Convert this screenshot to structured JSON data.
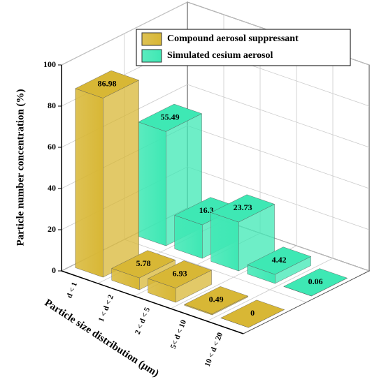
{
  "chart_data": {
    "type": "bar3d",
    "categories": [
      "d < 1",
      "1 < d < 2",
      "2 < d < 5",
      "5< d < 10",
      "10 < d < 20"
    ],
    "series": [
      {
        "name": "Compound aerosol suppressant",
        "color": "#d8b735",
        "values": [
          86.98,
          5.78,
          6.93,
          0.49,
          0
        ]
      },
      {
        "name": "Simulated cesium aerosol",
        "color": "#3ee8b4",
        "values": [
          55.49,
          16.3,
          23.73,
          4.42,
          0.06
        ]
      }
    ],
    "y_label": "Particle number concentration (%)",
    "x_label": "Particle size distribution (μm)",
    "ylim": [
      0,
      100
    ],
    "yticks": [
      0,
      20,
      40,
      60,
      80,
      100
    ],
    "grid": true,
    "legend": "top"
  }
}
